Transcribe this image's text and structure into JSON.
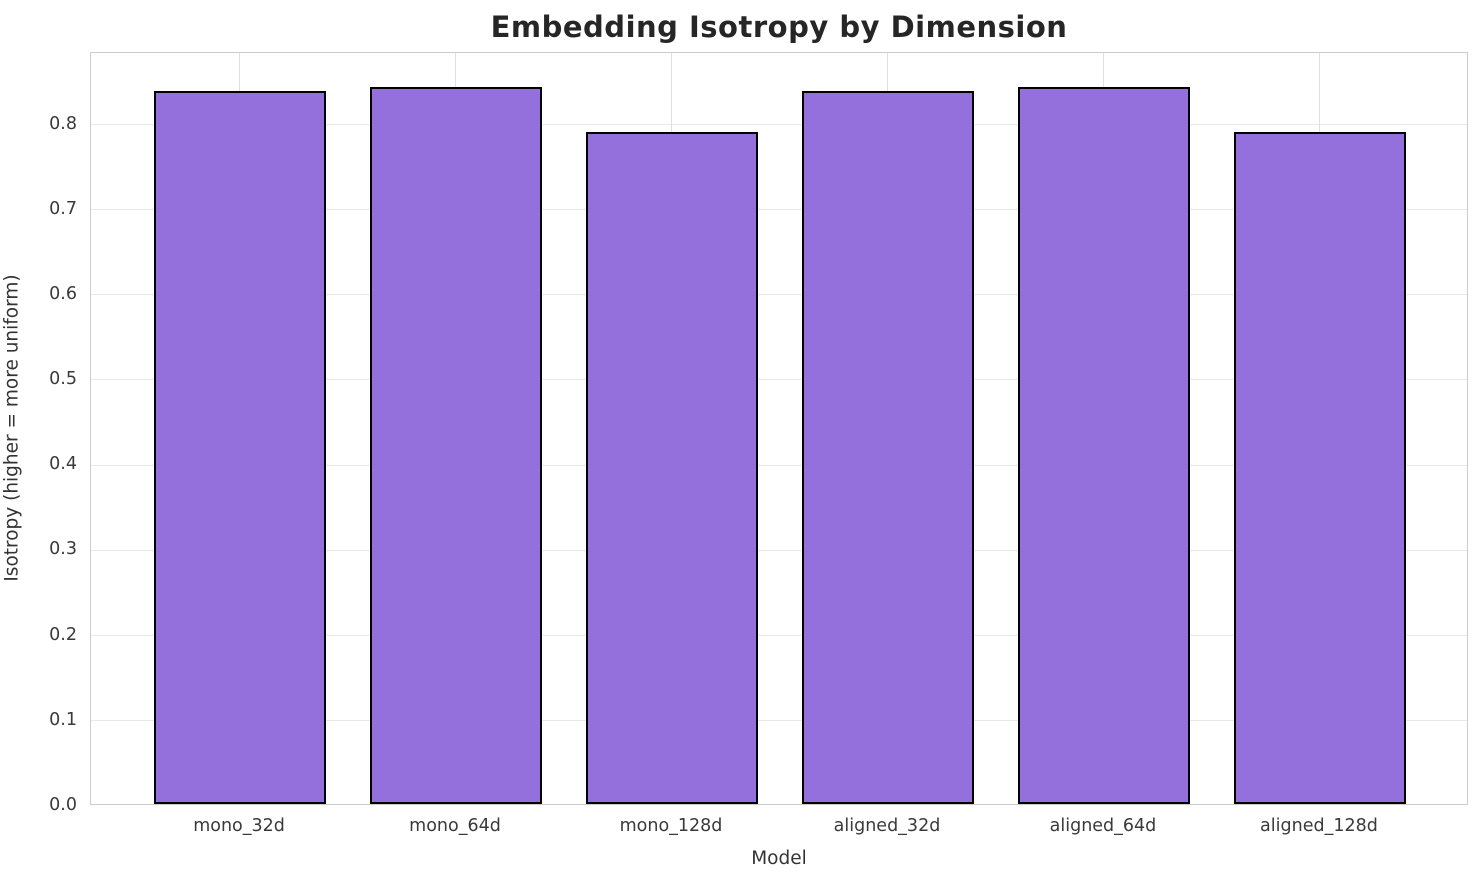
{
  "chart_data": {
    "type": "bar",
    "title": "Embedding Isotropy by Dimension",
    "xlabel": "Model",
    "ylabel": "Isotropy (higher = more uniform)",
    "categories": [
      "mono_32d",
      "mono_64d",
      "mono_128d",
      "aligned_32d",
      "aligned_64d",
      "aligned_128d"
    ],
    "values": [
      0.837,
      0.842,
      0.789,
      0.837,
      0.842,
      0.789
    ],
    "ytick_labels": [
      "0.0",
      "0.1",
      "0.2",
      "0.3",
      "0.4",
      "0.5",
      "0.6",
      "0.7",
      "0.8"
    ],
    "ytick_values": [
      0.0,
      0.1,
      0.2,
      0.3,
      0.4,
      0.5,
      0.6,
      0.7,
      0.8
    ],
    "ylim": [
      0,
      0.884
    ],
    "grid": true,
    "legend_position": "none",
    "bar_color": "#9370DB",
    "bar_edge_color": "#000000",
    "grid_color": "#e8e8e8",
    "spine_color": "#cccccc",
    "title_color": "#262626",
    "tick_label_color": "#3a3a3a",
    "axis_label_color": "#333333"
  }
}
